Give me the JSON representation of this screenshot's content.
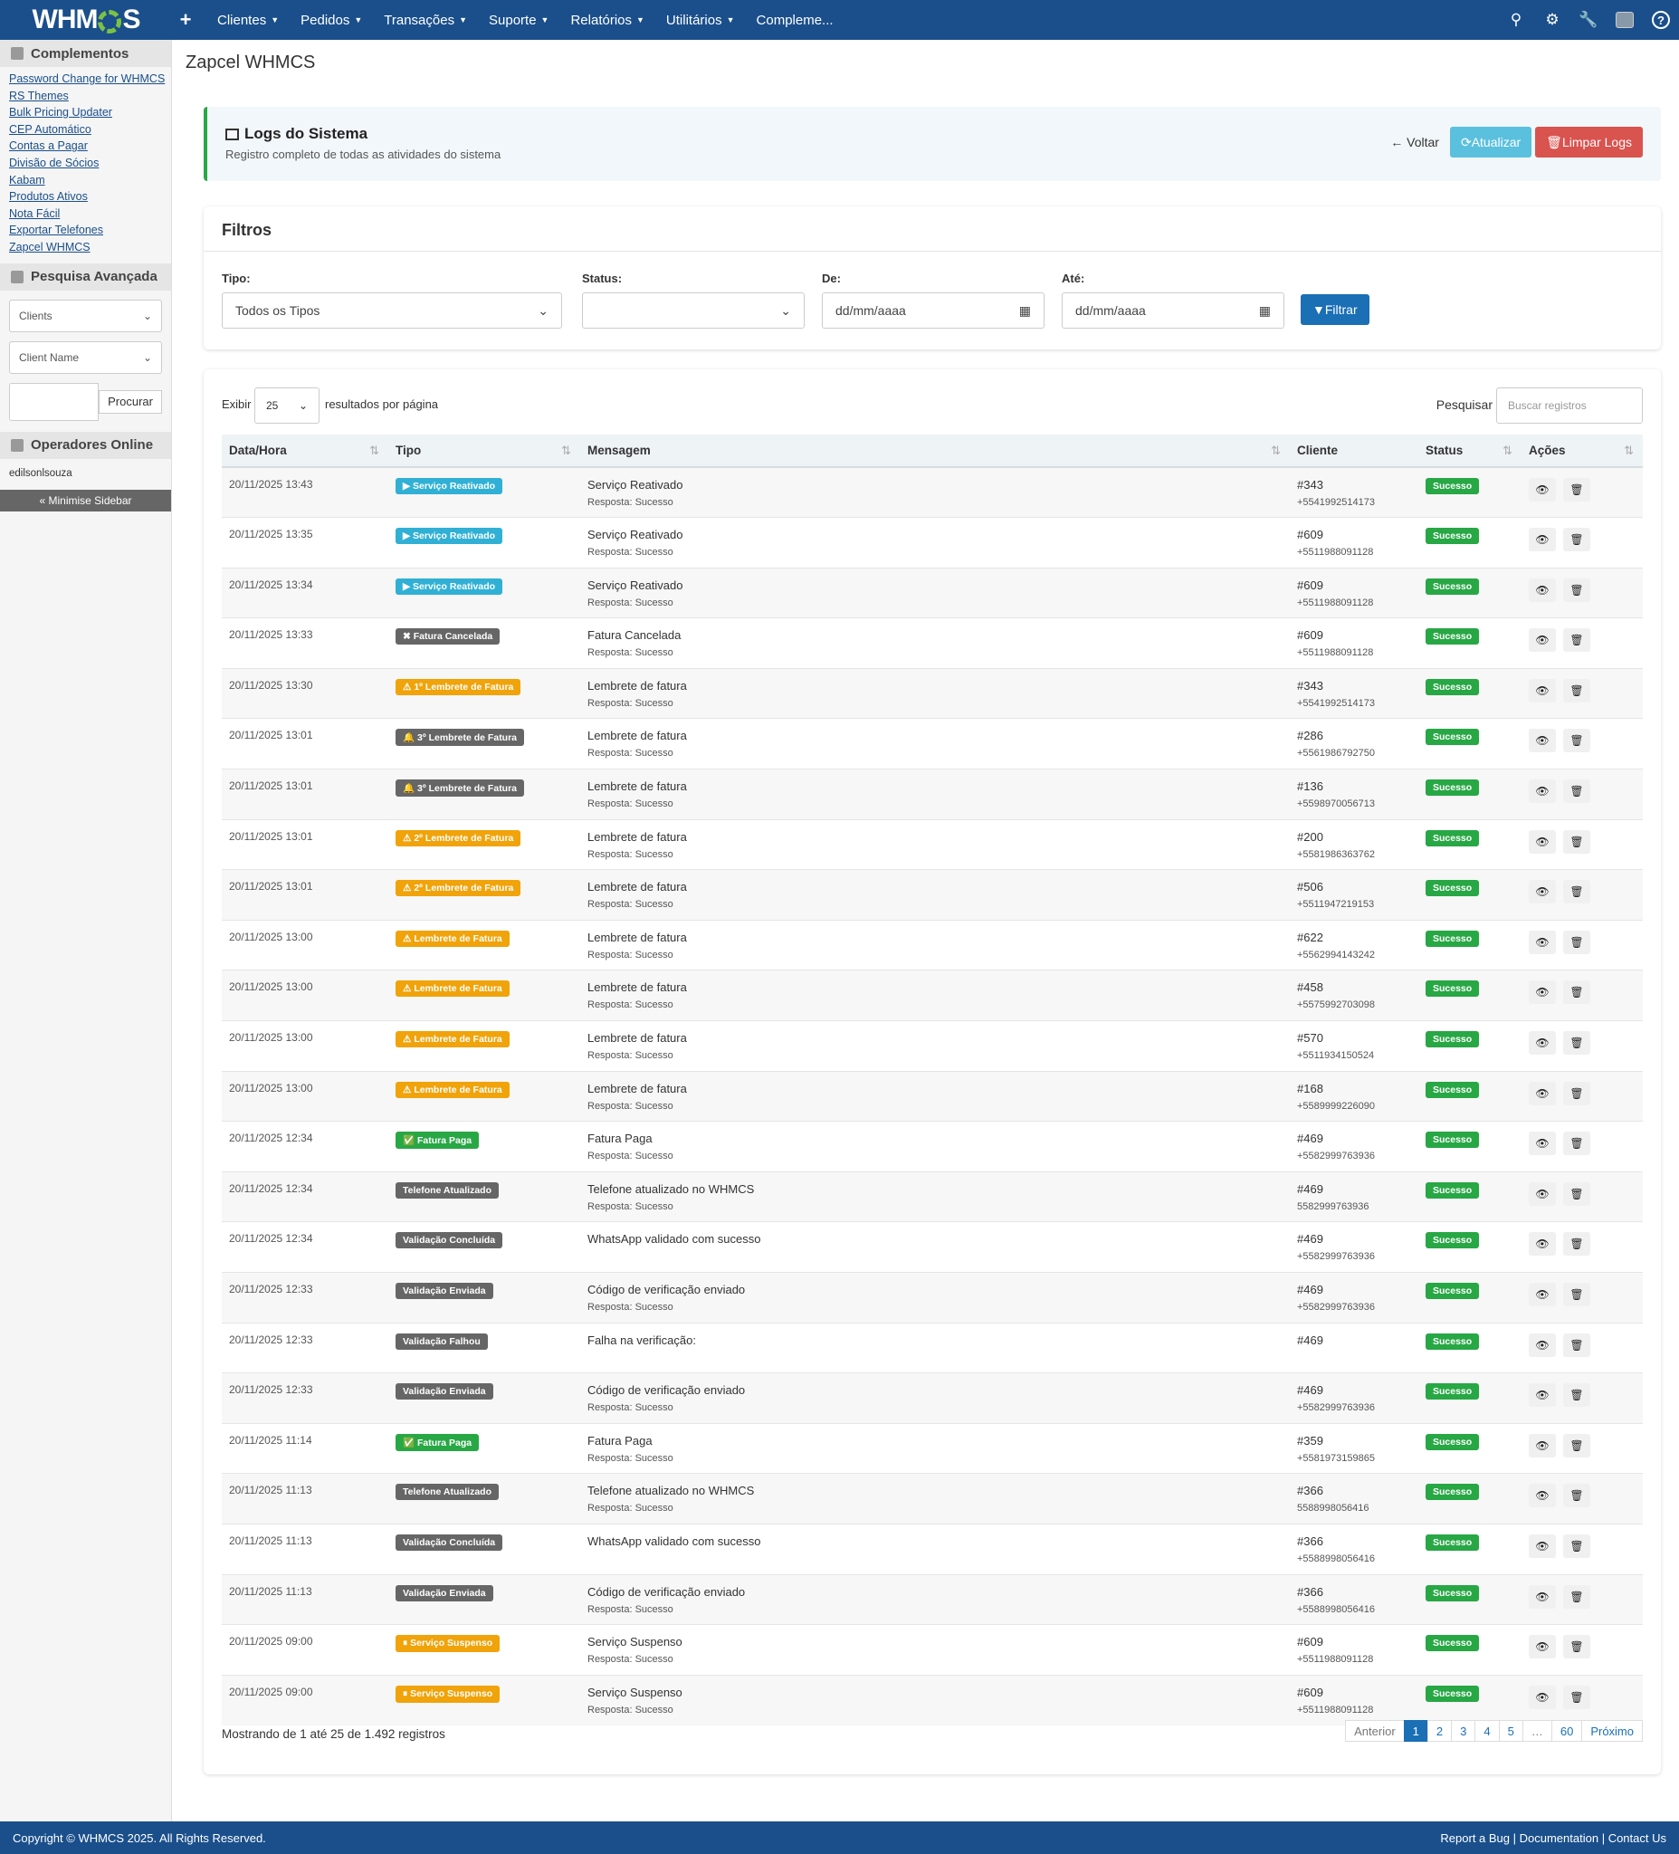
{
  "nav": {
    "logo": "WHMCS",
    "items": [
      "Clientes",
      "Pedidos",
      "Transações",
      "Suporte",
      "Relatórios",
      "Utilitários",
      "Compleme..."
    ],
    "plus": "+"
  },
  "sidebar": {
    "addons_title": "Complementos",
    "addons": [
      "Password Change for WHMCS",
      "RS Themes",
      "Bulk Pricing Updater",
      "CEP Automático",
      "Contas a Pagar",
      "Divisão de Sócios",
      "Kabam",
      "Produtos Ativos",
      "Nota Fácil",
      "Exportar Telefones",
      "Zapcel WHMCS"
    ],
    "search_title": "Pesquisa Avançada",
    "search_type": "Clients",
    "search_field": "Client Name",
    "search_button": "Procurar",
    "online_title": "Operadores Online",
    "online_user": "edilsonlsouza",
    "minimise": "« Minimise Sidebar"
  },
  "page": {
    "title": "Zapcel WHMCS",
    "header_title": "Logs do Sistema",
    "header_subtitle": "Registro completo de todas as atividades do sistema",
    "back": "Voltar",
    "refresh": "Atualizar",
    "clear": "Limpar Logs"
  },
  "filters": {
    "title": "Filtros",
    "type_label": "Tipo:",
    "type_value": "Todos os Tipos",
    "status_label": "Status:",
    "status_value": "",
    "from_label": "De:",
    "from_placeholder": "dd/mm/aaaa",
    "to_label": "Até:",
    "to_placeholder": "dd/mm/aaaa",
    "button": "Filtrar"
  },
  "table": {
    "show_label": "Exibir",
    "page_size": "25",
    "per_page_label": "resultados por página",
    "search_label": "Pesquisar",
    "search_placeholder": "Buscar registros",
    "columns": [
      "Data/Hora",
      "Tipo",
      "Mensagem",
      "Cliente",
      "Status",
      "Ações"
    ],
    "rows": [
      {
        "date": "20/11/2025 13:43",
        "type": "▶ Serviço Reativado",
        "color": "#31b0d5",
        "msg": "Serviço Reativado",
        "sub": "Resposta: Sucesso",
        "client": "#343",
        "phone": "+5541992514173",
        "status": "Sucesso"
      },
      {
        "date": "20/11/2025 13:35",
        "type": "▶ Serviço Reativado",
        "color": "#31b0d5",
        "msg": "Serviço Reativado",
        "sub": "Resposta: Sucesso",
        "client": "#609",
        "phone": "+5511988091128",
        "status": "Sucesso"
      },
      {
        "date": "20/11/2025 13:34",
        "type": "▶ Serviço Reativado",
        "color": "#31b0d5",
        "msg": "Serviço Reativado",
        "sub": "Resposta: Sucesso",
        "client": "#609",
        "phone": "+5511988091128",
        "status": "Sucesso"
      },
      {
        "date": "20/11/2025 13:33",
        "type": "✖ Fatura Cancelada",
        "color": "#666666",
        "msg": "Fatura Cancelada",
        "sub": "Resposta: Sucesso",
        "client": "#609",
        "phone": "+5511988091128",
        "status": "Sucesso"
      },
      {
        "date": "20/11/2025 13:30",
        "type": "⚠ 1º Lembrete de Fatura",
        "color": "#f0a30a",
        "msg": "Lembrete de fatura",
        "sub": "Resposta: Sucesso",
        "client": "#343",
        "phone": "+5541992514173",
        "status": "Sucesso"
      },
      {
        "date": "20/11/2025 13:01",
        "type": "🔔 3º Lembrete de Fatura",
        "color": "#666666",
        "msg": "Lembrete de fatura",
        "sub": "Resposta: Sucesso",
        "client": "#286",
        "phone": "+5561986792750",
        "status": "Sucesso"
      },
      {
        "date": "20/11/2025 13:01",
        "type": "🔔 3º Lembrete de Fatura",
        "color": "#666666",
        "msg": "Lembrete de fatura",
        "sub": "Resposta: Sucesso",
        "client": "#136",
        "phone": "+5598970056713",
        "status": "Sucesso"
      },
      {
        "date": "20/11/2025 13:01",
        "type": "⚠ 2º Lembrete de Fatura",
        "color": "#f0a30a",
        "msg": "Lembrete de fatura",
        "sub": "Resposta: Sucesso",
        "client": "#200",
        "phone": "+5581986363762",
        "status": "Sucesso"
      },
      {
        "date": "20/11/2025 13:01",
        "type": "⚠ 2º Lembrete de Fatura",
        "color": "#f0a30a",
        "msg": "Lembrete de fatura",
        "sub": "Resposta: Sucesso",
        "client": "#506",
        "phone": "+5511947219153",
        "status": "Sucesso"
      },
      {
        "date": "20/11/2025 13:00",
        "type": "⚠ Lembrete de Fatura",
        "color": "#f0a30a",
        "msg": "Lembrete de fatura",
        "sub": "Resposta: Sucesso",
        "client": "#622",
        "phone": "+5562994143242",
        "status": "Sucesso"
      },
      {
        "date": "20/11/2025 13:00",
        "type": "⚠ Lembrete de Fatura",
        "color": "#f0a30a",
        "msg": "Lembrete de fatura",
        "sub": "Resposta: Sucesso",
        "client": "#458",
        "phone": "+5575992703098",
        "status": "Sucesso"
      },
      {
        "date": "20/11/2025 13:00",
        "type": "⚠ Lembrete de Fatura",
        "color": "#f0a30a",
        "msg": "Lembrete de fatura",
        "sub": "Resposta: Sucesso",
        "client": "#570",
        "phone": "+5511934150524",
        "status": "Sucesso"
      },
      {
        "date": "20/11/2025 13:00",
        "type": "⚠ Lembrete de Fatura",
        "color": "#f0a30a",
        "msg": "Lembrete de fatura",
        "sub": "Resposta: Sucesso",
        "client": "#168",
        "phone": "+5589999226090",
        "status": "Sucesso"
      },
      {
        "date": "20/11/2025 12:34",
        "type": "✅ Fatura Paga",
        "color": "#28a745",
        "msg": "Fatura Paga",
        "sub": "Resposta: Sucesso",
        "client": "#469",
        "phone": "+5582999763936",
        "status": "Sucesso"
      },
      {
        "date": "20/11/2025 12:34",
        "type": "Telefone Atualizado",
        "color": "#666666",
        "msg": "Telefone atualizado no WHMCS",
        "sub": "Resposta: Sucesso",
        "client": "#469",
        "phone": "5582999763936",
        "status": "Sucesso"
      },
      {
        "date": "20/11/2025 12:34",
        "type": "Validação Concluída",
        "color": "#666666",
        "msg": "WhatsApp validado com sucesso",
        "sub": "",
        "client": "#469",
        "phone": "+5582999763936",
        "status": "Sucesso"
      },
      {
        "date": "20/11/2025 12:33",
        "type": "Validação Enviada",
        "color": "#666666",
        "msg": "Código de verificação enviado",
        "sub": "Resposta: Sucesso",
        "client": "#469",
        "phone": "+5582999763936",
        "status": "Sucesso"
      },
      {
        "date": "20/11/2025 12:33",
        "type": "Validação Falhou",
        "color": "#666666",
        "msg": "Falha na verificação:",
        "sub": "",
        "client": "#469",
        "phone": "",
        "status": "Sucesso"
      },
      {
        "date": "20/11/2025 12:33",
        "type": "Validação Enviada",
        "color": "#666666",
        "msg": "Código de verificação enviado",
        "sub": "Resposta: Sucesso",
        "client": "#469",
        "phone": "+5582999763936",
        "status": "Sucesso"
      },
      {
        "date": "20/11/2025 11:14",
        "type": "✅ Fatura Paga",
        "color": "#28a745",
        "msg": "Fatura Paga",
        "sub": "Resposta: Sucesso",
        "client": "#359",
        "phone": "+5581973159865",
        "status": "Sucesso"
      },
      {
        "date": "20/11/2025 11:13",
        "type": "Telefone Atualizado",
        "color": "#666666",
        "msg": "Telefone atualizado no WHMCS",
        "sub": "Resposta: Sucesso",
        "client": "#366",
        "phone": "5588998056416",
        "status": "Sucesso"
      },
      {
        "date": "20/11/2025 11:13",
        "type": "Validação Concluída",
        "color": "#666666",
        "msg": "WhatsApp validado com sucesso",
        "sub": "",
        "client": "#366",
        "phone": "+5588998056416",
        "status": "Sucesso"
      },
      {
        "date": "20/11/2025 11:13",
        "type": "Validação Enviada",
        "color": "#666666",
        "msg": "Código de verificação enviado",
        "sub": "Resposta: Sucesso",
        "client": "#366",
        "phone": "+5588998056416",
        "status": "Sucesso"
      },
      {
        "date": "20/11/2025 09:00",
        "type": "⏸ Serviço Suspenso",
        "color": "#f0a30a",
        "msg": "Serviço Suspenso",
        "sub": "Resposta: Sucesso",
        "client": "#609",
        "phone": "+5511988091128",
        "status": "Sucesso"
      },
      {
        "date": "20/11/2025 09:00",
        "type": "⏸ Serviço Suspenso",
        "color": "#f0a30a",
        "msg": "Serviço Suspenso",
        "sub": "Resposta: Sucesso",
        "client": "#609",
        "phone": "+5511988091128",
        "status": "Sucesso"
      }
    ],
    "info": "Mostrando de 1 até 25 de 1.492 registros",
    "pager": [
      "Anterior",
      "1",
      "2",
      "3",
      "4",
      "5",
      "…",
      "60",
      "Próximo"
    ]
  },
  "footer": {
    "copyright": "Copyright © WHMCS 2025. All Rights Reserved.",
    "links": [
      "Report a Bug",
      "Documentation",
      "Contact Us"
    ]
  },
  "colors": {
    "nav": "#1a4f8b",
    "success": "#28a745",
    "danger": "#d9534f",
    "info": "#5bc0de"
  }
}
